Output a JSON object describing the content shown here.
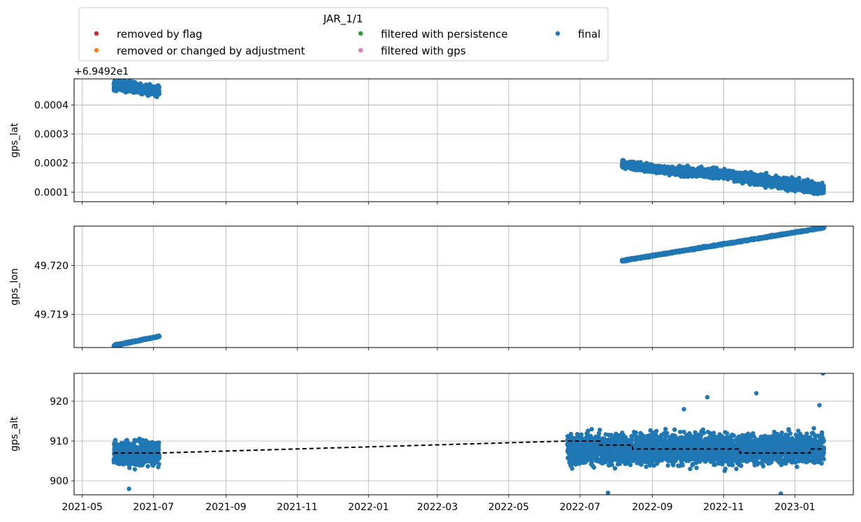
{
  "legend": {
    "title": "JAR_1/1",
    "entries": [
      {
        "label": "removed by flag",
        "color": "#d62728"
      },
      {
        "label": "removed or changed by adjustment",
        "color": "#ff7f0e"
      },
      {
        "label": "filtered with persistence",
        "color": "#2ca02c"
      },
      {
        "label": "filtered with gps",
        "color": "#e377c2"
      },
      {
        "label": "final",
        "color": "#1f77b4"
      }
    ]
  },
  "chart_data": [
    {
      "type": "scatter",
      "ylabel": "gps_lat",
      "offset_text": "+6.9492e1",
      "x_tick_labels": [
        "2021-05",
        "2021-07",
        "2021-09",
        "2021-11",
        "2022-01",
        "2022-03",
        "2022-05",
        "2022-07",
        "2022-09",
        "2022-11",
        "2023-01"
      ],
      "x_range": [
        "2021-04-24",
        "2023-02-20"
      ],
      "ylim": [
        6.7e-05,
        0.00049
      ],
      "y_ticks": [
        0.0001,
        0.0002,
        0.0003,
        0.0004
      ],
      "y_tick_labels": [
        "0.0001",
        "0.0002",
        "0.0003",
        "0.0004"
      ],
      "grid": true,
      "series": [
        {
          "name": "final",
          "color": "#1f77b4",
          "segments": [
            {
              "start": "2021-05-28",
              "end": "2021-07-06",
              "y_start": 0.000468,
              "y_end": 0.000448,
              "spread": 1.2e-05
            },
            {
              "start": "2022-08-06",
              "end": "2022-09-15",
              "y_start": 0.000195,
              "y_end": 0.000175,
              "spread": 9e-06
            },
            {
              "start": "2022-09-15",
              "end": "2022-11-10",
              "y_start": 0.000175,
              "y_end": 0.00016,
              "spread": 1e-05
            },
            {
              "start": "2022-11-10",
              "end": "2023-01-26",
              "y_start": 0.000155,
              "y_end": 0.00011,
              "spread": 1.3e-05
            }
          ]
        }
      ]
    },
    {
      "type": "scatter",
      "ylabel": "gps_lon",
      "x_tick_labels": [
        "2021-05",
        "2021-07",
        "2021-09",
        "2021-11",
        "2022-01",
        "2022-03",
        "2022-05",
        "2022-07",
        "2022-09",
        "2022-11",
        "2023-01"
      ],
      "x_range": [
        "2021-04-24",
        "2023-02-20"
      ],
      "ylim": [
        49.71832,
        49.72081
      ],
      "y_ticks": [
        49.719,
        49.72
      ],
      "y_tick_labels": [
        "49.719",
        "49.720"
      ],
      "grid": true,
      "series": [
        {
          "name": "final",
          "color": "#1f77b4",
          "segments": [
            {
              "start": "2021-05-28",
              "end": "2021-07-06",
              "y_start": 49.71836,
              "y_end": 49.71855,
              "spread": 1.2e-05
            },
            {
              "start": "2022-08-06",
              "end": "2023-01-26",
              "y_start": 49.7201,
              "y_end": 49.72078,
              "spread": 1.2e-05
            }
          ]
        }
      ]
    },
    {
      "type": "scatter",
      "ylabel": "gps_alt",
      "x_tick_labels": [
        "2021-05",
        "2021-07",
        "2021-09",
        "2021-11",
        "2022-01",
        "2022-03",
        "2022-05",
        "2022-07",
        "2022-09",
        "2022-11",
        "2023-01"
      ],
      "x_range": [
        "2021-04-24",
        "2023-02-20"
      ],
      "ylim": [
        896.5,
        927
      ],
      "y_ticks": [
        900,
        910,
        920
      ],
      "y_tick_labels": [
        "900",
        "910",
        "920"
      ],
      "grid": true,
      "series": [
        {
          "name": "final",
          "color": "#1f77b4",
          "segments": [
            {
              "start": "2021-05-28",
              "end": "2021-07-06",
              "y_center": 907,
              "spread": 2.2
            },
            {
              "start": "2022-06-20",
              "end": "2023-01-26",
              "y_center": 908,
              "spread": 2.6
            }
          ],
          "outliers": [
            {
              "x": "2021-06-10",
              "y": 898
            },
            {
              "x": "2022-11-29",
              "y": 922
            },
            {
              "x": "2022-10-18",
              "y": 921
            },
            {
              "x": "2023-01-25",
              "y": 927
            },
            {
              "x": "2022-09-28",
              "y": 918
            },
            {
              "x": "2023-01-22",
              "y": 919
            },
            {
              "x": "2022-07-25",
              "y": 897
            },
            {
              "x": "2022-12-20",
              "y": 896.8
            }
          ]
        },
        {
          "name": "",
          "color": "#000000",
          "style": "dashed-step",
          "points": [
            {
              "x": "2021-05-28",
              "y": 907
            },
            {
              "x": "2021-07-06",
              "y": 907
            },
            {
              "x": "2022-06-20",
              "y": 910
            },
            {
              "x": "2022-07-18",
              "y": 910
            },
            {
              "x": "2022-07-18",
              "y": 909
            },
            {
              "x": "2022-08-15",
              "y": 909
            },
            {
              "x": "2022-08-15",
              "y": 908
            },
            {
              "x": "2022-11-15",
              "y": 908
            },
            {
              "x": "2022-11-15",
              "y": 907
            },
            {
              "x": "2023-01-14",
              "y": 907
            },
            {
              "x": "2023-01-14",
              "y": 908
            },
            {
              "x": "2023-01-26",
              "y": 908
            }
          ]
        }
      ]
    }
  ]
}
